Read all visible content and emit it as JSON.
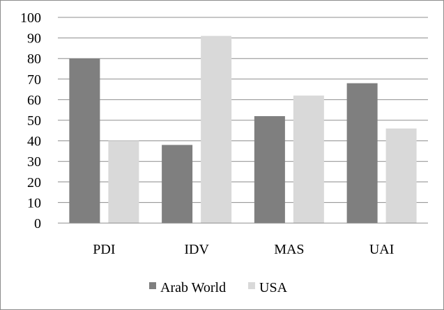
{
  "chart_data": {
    "type": "bar",
    "categories": [
      "PDI",
      "IDV",
      "MAS",
      "UAI"
    ],
    "series": [
      {
        "name": "Arab World",
        "values": [
          80,
          38,
          52,
          68
        ],
        "color": "#7f7f7f"
      },
      {
        "name": "USA",
        "values": [
          40,
          91,
          62,
          46
        ],
        "color": "#d9d9d9"
      }
    ],
    "ylim": [
      0,
      100
    ],
    "yticks": [
      "0",
      "10",
      "20",
      "30",
      "40",
      "50",
      "60",
      "70",
      "80",
      "90",
      "100"
    ],
    "grid": true,
    "legend": "bottom",
    "title": "",
    "xlabel": "",
    "ylabel": ""
  }
}
